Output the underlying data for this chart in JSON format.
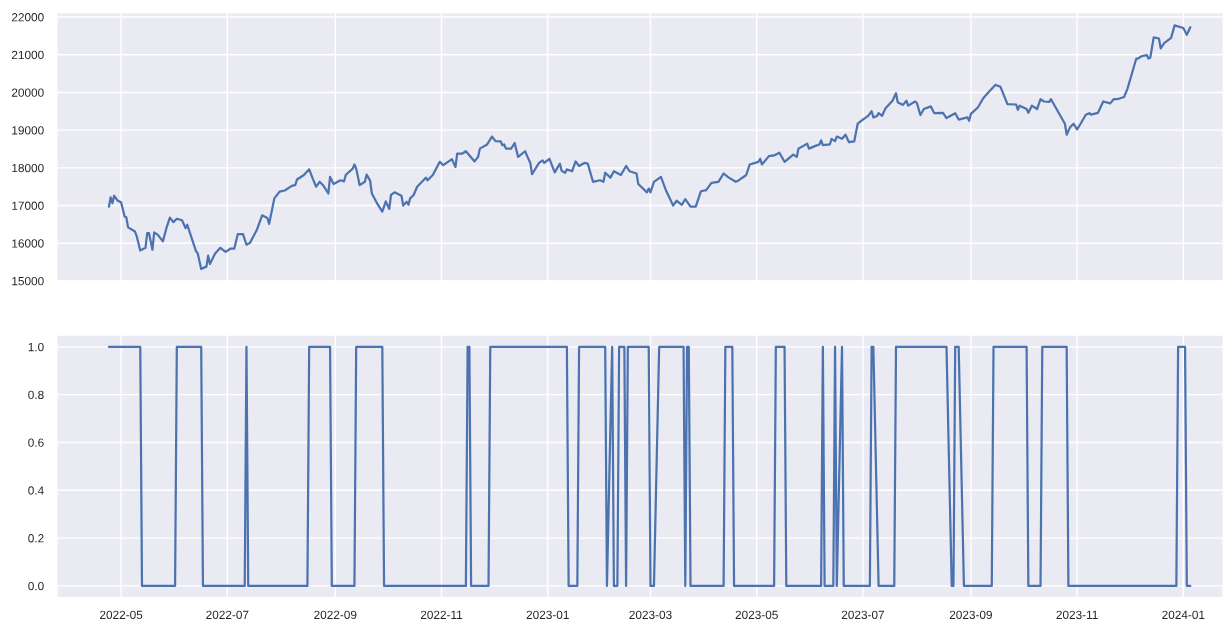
{
  "chart_data": [
    {
      "type": "line",
      "color": "#4c72b0",
      "grid": true,
      "tick_labels": "y",
      "xlim": [
        "2022-03-25",
        "2024-01-24"
      ],
      "ylim": [
        14980,
        22120
      ],
      "xticks": [
        "2022-05",
        "2022-07",
        "2022-09",
        "2022-11",
        "2023-01",
        "2023-03",
        "2023-05",
        "2023-07",
        "2023-09",
        "2023-11",
        "2024-01"
      ],
      "yticks": [
        15000,
        16000,
        17000,
        18000,
        19000,
        20000,
        21000,
        22000
      ],
      "x": [
        "2022-04-24",
        "2022-04-25",
        "2022-04-26",
        "2022-04-27",
        "2022-04-29",
        "2022-05-01",
        "2022-05-03",
        "2022-05-04",
        "2022-05-05",
        "2022-05-09",
        "2022-05-10",
        "2022-05-12",
        "2022-05-15",
        "2022-05-16",
        "2022-05-17",
        "2022-05-19",
        "2022-05-20",
        "2022-05-22",
        "2022-05-25",
        "2022-05-27",
        "2022-05-29",
        "2022-05-31",
        "2022-06-02",
        "2022-06-05",
        "2022-06-07",
        "2022-06-08",
        "2022-06-13",
        "2022-06-14",
        "2022-06-16",
        "2022-06-19",
        "2022-06-20",
        "2022-06-21",
        "2022-06-24",
        "2022-06-27",
        "2022-06-30",
        "2022-07-03",
        "2022-07-05",
        "2022-07-07",
        "2022-07-10",
        "2022-07-12",
        "2022-07-14",
        "2022-07-18",
        "2022-07-21",
        "2022-07-24",
        "2022-07-25",
        "2022-07-28",
        "2022-07-31",
        "2022-08-03",
        "2022-08-07",
        "2022-08-09",
        "2022-08-10",
        "2022-08-14",
        "2022-08-17",
        "2022-08-19",
        "2022-08-21",
        "2022-08-23",
        "2022-08-25",
        "2022-08-28",
        "2022-08-29",
        "2022-08-31",
        "2022-09-04",
        "2022-09-06",
        "2022-09-07",
        "2022-09-11",
        "2022-09-12",
        "2022-09-13",
        "2022-09-15",
        "2022-09-18",
        "2022-09-19",
        "2022-09-21",
        "2022-09-22",
        "2022-09-25",
        "2022-09-28",
        "2022-09-30",
        "2022-10-02",
        "2022-10-03",
        "2022-10-05",
        "2022-10-09",
        "2022-10-10",
        "2022-10-12",
        "2022-10-13",
        "2022-10-14",
        "2022-10-16",
        "2022-10-18",
        "2022-10-23",
        "2022-10-24",
        "2022-10-27",
        "2022-10-31",
        "2022-11-02",
        "2022-11-07",
        "2022-11-09",
        "2022-11-10",
        "2022-11-13",
        "2022-11-15",
        "2022-11-20",
        "2022-11-22",
        "2022-11-23",
        "2022-11-27",
        "2022-11-30",
        "2022-12-02",
        "2022-12-05",
        "2022-12-06",
        "2022-12-07",
        "2022-12-08",
        "2022-12-11",
        "2022-12-13",
        "2022-12-15",
        "2022-12-19",
        "2022-12-20",
        "2022-12-22",
        "2022-12-23",
        "2022-12-27",
        "2022-12-29",
        "2022-12-30",
        "2023-01-02",
        "2023-01-05",
        "2023-01-08",
        "2023-01-09",
        "2023-01-11",
        "2023-01-12",
        "2023-01-15",
        "2023-01-17",
        "2023-01-19",
        "2023-01-22",
        "2023-01-24",
        "2023-01-27",
        "2023-01-31",
        "2023-02-02",
        "2023-02-03",
        "2023-02-06",
        "2023-02-08",
        "2023-02-12",
        "2023-02-15",
        "2023-02-17",
        "2023-02-21",
        "2023-02-22",
        "2023-02-27",
        "2023-02-28",
        "2023-03-01",
        "2023-03-03",
        "2023-03-07",
        "2023-03-10",
        "2023-03-14",
        "2023-03-16",
        "2023-03-19",
        "2023-03-21",
        "2023-03-24",
        "2023-03-27",
        "2023-03-30",
        "2023-04-02",
        "2023-04-05",
        "2023-04-09",
        "2023-04-12",
        "2023-04-15",
        "2023-04-19",
        "2023-04-20",
        "2023-04-25",
        "2023-04-27",
        "2023-05-02",
        "2023-05-03",
        "2023-05-04",
        "2023-05-08",
        "2023-05-11",
        "2023-05-14",
        "2023-05-17",
        "2023-05-22",
        "2023-05-24",
        "2023-05-25",
        "2023-05-30",
        "2023-05-31",
        "2023-06-03",
        "2023-06-06",
        "2023-06-07",
        "2023-06-08",
        "2023-06-12",
        "2023-06-13",
        "2023-06-15",
        "2023-06-16",
        "2023-06-19",
        "2023-06-21",
        "2023-06-23",
        "2023-06-26",
        "2023-06-28",
        "2023-07-01",
        "2023-07-04",
        "2023-07-06",
        "2023-07-07",
        "2023-07-09",
        "2023-07-10",
        "2023-07-12",
        "2023-07-14",
        "2023-07-18",
        "2023-07-20",
        "2023-07-21",
        "2023-07-24",
        "2023-07-26",
        "2023-07-27",
        "2023-07-31",
        "2023-08-01",
        "2023-08-03",
        "2023-08-05",
        "2023-08-09",
        "2023-08-11",
        "2023-08-16",
        "2023-08-18",
        "2023-08-23",
        "2023-08-25",
        "2023-08-30",
        "2023-08-31",
        "2023-09-01",
        "2023-09-05",
        "2023-09-08",
        "2023-09-11",
        "2023-09-15",
        "2023-09-18",
        "2023-09-22",
        "2023-09-27",
        "2023-09-28",
        "2023-09-29",
        "2023-10-03",
        "2023-10-04",
        "2023-10-06",
        "2023-10-09",
        "2023-10-11",
        "2023-10-13",
        "2023-10-16",
        "2023-10-17",
        "2023-10-25",
        "2023-10-26",
        "2023-10-28",
        "2023-10-30",
        "2023-11-01",
        "2023-11-03",
        "2023-11-06",
        "2023-11-08",
        "2023-11-09",
        "2023-11-13",
        "2023-11-16",
        "2023-11-20",
        "2023-11-22",
        "2023-11-24",
        "2023-11-28",
        "2023-11-30",
        "2023-12-05",
        "2023-12-06",
        "2023-12-08",
        "2023-12-11",
        "2023-12-12",
        "2023-12-13",
        "2023-12-15",
        "2023-12-18",
        "2023-12-19",
        "2023-12-21",
        "2023-12-25",
        "2023-12-27",
        "2024-01-01",
        "2024-01-03",
        "2024-01-05"
      ],
      "values": [
        16970,
        17220,
        17060,
        17260,
        17130,
        17090,
        16710,
        16690,
        16420,
        16310,
        16180,
        15810,
        15880,
        16270,
        16270,
        15830,
        16290,
        16230,
        16050,
        16400,
        16680,
        16560,
        16650,
        16610,
        16400,
        16490,
        15790,
        15730,
        15320,
        15380,
        15670,
        15450,
        15730,
        15880,
        15770,
        15860,
        15860,
        16240,
        16240,
        15960,
        16010,
        16360,
        16740,
        16670,
        16510,
        17190,
        17370,
        17400,
        17520,
        17540,
        17690,
        17810,
        17960,
        17720,
        17500,
        17630,
        17540,
        17320,
        17760,
        17570,
        17670,
        17640,
        17810,
        17980,
        18090,
        17980,
        17540,
        17630,
        17820,
        17660,
        17320,
        17060,
        16840,
        17110,
        16910,
        17280,
        17350,
        17260,
        17000,
        17100,
        17020,
        17190,
        17280,
        17500,
        17740,
        17670,
        17810,
        18160,
        18070,
        18230,
        18020,
        18380,
        18380,
        18440,
        18170,
        18290,
        18510,
        18610,
        18830,
        18710,
        18700,
        18600,
        18620,
        18510,
        18510,
        18660,
        18290,
        18440,
        18330,
        18130,
        17830,
        18130,
        18200,
        18130,
        18240,
        17880,
        18110,
        17920,
        17870,
        17960,
        17910,
        18170,
        18050,
        18130,
        18110,
        17630,
        17670,
        17630,
        17870,
        17740,
        17910,
        17810,
        18050,
        17910,
        17850,
        17570,
        17350,
        17450,
        17350,
        17630,
        17760,
        17390,
        17000,
        17130,
        17020,
        17170,
        16970,
        16970,
        17380,
        17410,
        17600,
        17630,
        17850,
        17740,
        17630,
        17650,
        17810,
        18090,
        18160,
        18240,
        18090,
        18310,
        18330,
        18400,
        18160,
        18350,
        18290,
        18510,
        18640,
        18510,
        18570,
        18620,
        18730,
        18600,
        18620,
        18770,
        18710,
        18830,
        18770,
        18880,
        18680,
        18700,
        19170,
        19280,
        19380,
        19500,
        19340,
        19370,
        19450,
        19380,
        19580,
        19780,
        19980,
        19740,
        19670,
        19780,
        19650,
        19760,
        19720,
        19400,
        19560,
        19630,
        19450,
        19460,
        19320,
        19450,
        19280,
        19340,
        19250,
        19430,
        19600,
        19840,
        20000,
        20200,
        20150,
        19690,
        19680,
        19540,
        19650,
        19560,
        19460,
        19650,
        19560,
        19820,
        19760,
        19750,
        19820,
        19170,
        18880,
        19080,
        19170,
        19020,
        19170,
        19410,
        19450,
        19410,
        19460,
        19760,
        19710,
        19820,
        19820,
        19880,
        20110,
        20900,
        20900,
        20960,
        20990,
        20900,
        20920,
        21460,
        21430,
        21170,
        21310,
        21450,
        21780,
        21710,
        21530,
        21730
      ]
    },
    {
      "type": "line",
      "color": "#4c72b0",
      "grid": true,
      "xlim": [
        "2022-03-25",
        "2024-01-24"
      ],
      "ylim": [
        -0.05,
        1.05
      ],
      "xticks": [
        "2022-05",
        "2022-07",
        "2022-09",
        "2022-11",
        "2023-01",
        "2023-03",
        "2023-05",
        "2023-07",
        "2023-09",
        "2023-11",
        "2024-01"
      ],
      "yticks": [
        {
          "value": 0,
          "label": "0.0"
        },
        0.2,
        0.4,
        0.6,
        0.8,
        {
          "value": 1,
          "label": "1.0"
        }
      ],
      "x": [
        "2022-04-24",
        "2022-05-12",
        "2022-05-13",
        "2022-06-01",
        "2022-06-02",
        "2022-06-16",
        "2022-06-17",
        "2022-07-11",
        "2022-07-12",
        "2022-07-13",
        "2022-08-16",
        "2022-08-17",
        "2022-08-29",
        "2022-08-30",
        "2022-09-12",
        "2022-09-13",
        "2022-09-28",
        "2022-09-29",
        "2022-11-15",
        "2022-11-16",
        "2022-11-17",
        "2022-11-18",
        "2022-11-28",
        "2022-11-29",
        "2023-01-12",
        "2023-01-13",
        "2023-01-18",
        "2023-01-19",
        "2023-02-03",
        "2023-02-04",
        "2023-02-07",
        "2023-02-08",
        "2023-02-10",
        "2023-02-11",
        "2023-02-14",
        "2023-02-15",
        "2023-02-16",
        "2023-02-28",
        "2023-03-01",
        "2023-03-03",
        "2023-03-06",
        "2023-03-20",
        "2023-03-21",
        "2023-03-22",
        "2023-03-23",
        "2023-03-24",
        "2023-04-12",
        "2023-04-13",
        "2023-04-17",
        "2023-04-18",
        "2023-05-11",
        "2023-05-12",
        "2023-05-17",
        "2023-05-18",
        "2023-06-07",
        "2023-06-08",
        "2023-06-09",
        "2023-06-14",
        "2023-06-15",
        "2023-06-16",
        "2023-06-19",
        "2023-06-20",
        "2023-07-05",
        "2023-07-06",
        "2023-07-07",
        "2023-07-10",
        "2023-07-19",
        "2023-07-20",
        "2023-08-18",
        "2023-08-21",
        "2023-08-22",
        "2023-08-23",
        "2023-08-25",
        "2023-08-28",
        "2023-09-13",
        "2023-09-14",
        "2023-10-03",
        "2023-10-04",
        "2023-10-11",
        "2023-10-12",
        "2023-10-26",
        "2023-10-27",
        "2023-12-28",
        "2023-12-29",
        "2024-01-02",
        "2024-01-03",
        "2024-01-05"
      ],
      "values": [
        1,
        1,
        0,
        0,
        1,
        1,
        0,
        0,
        1,
        0,
        0,
        1,
        1,
        0,
        0,
        1,
        1,
        0,
        0,
        1,
        1,
        0,
        0,
        1,
        1,
        0,
        0,
        1,
        1,
        0,
        1,
        0,
        0,
        1,
        1,
        0,
        1,
        1,
        0,
        0,
        1,
        1,
        0,
        1,
        1,
        0,
        0,
        1,
        1,
        0,
        0,
        1,
        1,
        0,
        0,
        1,
        0,
        0,
        1,
        0,
        1,
        0,
        0,
        1,
        1,
        0,
        0,
        1,
        1,
        0,
        0,
        1,
        1,
        0,
        0,
        1,
        1,
        0,
        0,
        1,
        1,
        0,
        0,
        1,
        1,
        0,
        0
      ]
    }
  ]
}
